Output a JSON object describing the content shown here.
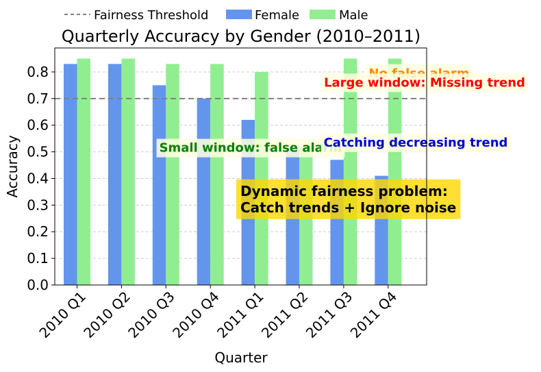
{
  "chart_data": {
    "type": "bar",
    "title": "Quarterly Accuracy by Gender (2010–2011)",
    "xlabel": "Quarter",
    "ylabel": "Accuracy",
    "ylim": [
      0,
      0.89
    ],
    "yticks": [
      "0.0",
      "0.1",
      "0.2",
      "0.3",
      "0.4",
      "0.5",
      "0.6",
      "0.7",
      "0.8"
    ],
    "grid": "horizontal dashed",
    "legend_position": "top-left, above plot",
    "categories": [
      "2010 Q1",
      "2010 Q2",
      "2010 Q3",
      "2010 Q4",
      "2011 Q1",
      "2011 Q2",
      "2011 Q3",
      "2011 Q4"
    ],
    "series": [
      {
        "name": "Female",
        "color": "#6495ED",
        "values": [
          0.83,
          0.83,
          0.75,
          0.7,
          0.62,
          0.51,
          0.47,
          0.41
        ]
      },
      {
        "name": "Male",
        "color": "#90EE90",
        "values": [
          0.85,
          0.85,
          0.83,
          0.83,
          0.8,
          0.52,
          0.85,
          0.85
        ]
      }
    ],
    "threshold": {
      "name": "Fairness Threshold",
      "value": 0.7,
      "color": "#808080",
      "style": "dashed"
    },
    "annotations": [
      {
        "text": "No false alarm",
        "color": "#FF8C00",
        "x_category": "2011 Q4",
        "y": 0.78
      },
      {
        "text": "Large window: Missing trend",
        "color": "#FF0000",
        "x_category": "2011 Q3",
        "y": 0.745
      },
      {
        "text": "Small window: false alarm",
        "color": "#008000",
        "x_category": "2011 Q1",
        "y": 0.5
      },
      {
        "text": "Catching decreasing trend",
        "color": "#0000CD",
        "x_category": "2011 Q3",
        "y": 0.52
      },
      {
        "text": "Dynamic fairness problem:\nCatch trends + Ignore noise",
        "color": "#000000",
        "background": "#FFD700",
        "x_category": "2011 Q2",
        "y": 0.335
      }
    ]
  }
}
